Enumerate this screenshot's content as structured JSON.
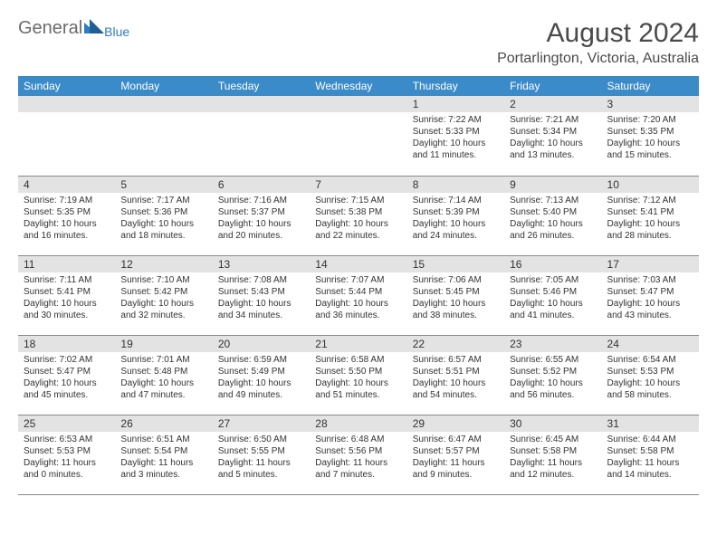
{
  "logo": {
    "text1": "General",
    "text2": "Blue"
  },
  "header": {
    "title": "August 2024",
    "location": "Portarlington, Victoria, Australia"
  },
  "weekdays": [
    "Sunday",
    "Monday",
    "Tuesday",
    "Wednesday",
    "Thursday",
    "Friday",
    "Saturday"
  ],
  "colors": {
    "header_bg": "#3b8bc9",
    "daynum_bg": "#e3e3e3",
    "text": "#333333",
    "title": "#4a4a4a"
  },
  "weeks": [
    [
      {
        "empty": true
      },
      {
        "empty": true
      },
      {
        "empty": true
      },
      {
        "empty": true
      },
      {
        "num": "1",
        "sunrise": "7:22 AM",
        "sunset": "5:33 PM",
        "daylight": "10 hours and 11 minutes."
      },
      {
        "num": "2",
        "sunrise": "7:21 AM",
        "sunset": "5:34 PM",
        "daylight": "10 hours and 13 minutes."
      },
      {
        "num": "3",
        "sunrise": "7:20 AM",
        "sunset": "5:35 PM",
        "daylight": "10 hours and 15 minutes."
      }
    ],
    [
      {
        "num": "4",
        "sunrise": "7:19 AM",
        "sunset": "5:35 PM",
        "daylight": "10 hours and 16 minutes."
      },
      {
        "num": "5",
        "sunrise": "7:17 AM",
        "sunset": "5:36 PM",
        "daylight": "10 hours and 18 minutes."
      },
      {
        "num": "6",
        "sunrise": "7:16 AM",
        "sunset": "5:37 PM",
        "daylight": "10 hours and 20 minutes."
      },
      {
        "num": "7",
        "sunrise": "7:15 AM",
        "sunset": "5:38 PM",
        "daylight": "10 hours and 22 minutes."
      },
      {
        "num": "8",
        "sunrise": "7:14 AM",
        "sunset": "5:39 PM",
        "daylight": "10 hours and 24 minutes."
      },
      {
        "num": "9",
        "sunrise": "7:13 AM",
        "sunset": "5:40 PM",
        "daylight": "10 hours and 26 minutes."
      },
      {
        "num": "10",
        "sunrise": "7:12 AM",
        "sunset": "5:41 PM",
        "daylight": "10 hours and 28 minutes."
      }
    ],
    [
      {
        "num": "11",
        "sunrise": "7:11 AM",
        "sunset": "5:41 PM",
        "daylight": "10 hours and 30 minutes."
      },
      {
        "num": "12",
        "sunrise": "7:10 AM",
        "sunset": "5:42 PM",
        "daylight": "10 hours and 32 minutes."
      },
      {
        "num": "13",
        "sunrise": "7:08 AM",
        "sunset": "5:43 PM",
        "daylight": "10 hours and 34 minutes."
      },
      {
        "num": "14",
        "sunrise": "7:07 AM",
        "sunset": "5:44 PM",
        "daylight": "10 hours and 36 minutes."
      },
      {
        "num": "15",
        "sunrise": "7:06 AM",
        "sunset": "5:45 PM",
        "daylight": "10 hours and 38 minutes."
      },
      {
        "num": "16",
        "sunrise": "7:05 AM",
        "sunset": "5:46 PM",
        "daylight": "10 hours and 41 minutes."
      },
      {
        "num": "17",
        "sunrise": "7:03 AM",
        "sunset": "5:47 PM",
        "daylight": "10 hours and 43 minutes."
      }
    ],
    [
      {
        "num": "18",
        "sunrise": "7:02 AM",
        "sunset": "5:47 PM",
        "daylight": "10 hours and 45 minutes."
      },
      {
        "num": "19",
        "sunrise": "7:01 AM",
        "sunset": "5:48 PM",
        "daylight": "10 hours and 47 minutes."
      },
      {
        "num": "20",
        "sunrise": "6:59 AM",
        "sunset": "5:49 PM",
        "daylight": "10 hours and 49 minutes."
      },
      {
        "num": "21",
        "sunrise": "6:58 AM",
        "sunset": "5:50 PM",
        "daylight": "10 hours and 51 minutes."
      },
      {
        "num": "22",
        "sunrise": "6:57 AM",
        "sunset": "5:51 PM",
        "daylight": "10 hours and 54 minutes."
      },
      {
        "num": "23",
        "sunrise": "6:55 AM",
        "sunset": "5:52 PM",
        "daylight": "10 hours and 56 minutes."
      },
      {
        "num": "24",
        "sunrise": "6:54 AM",
        "sunset": "5:53 PM",
        "daylight": "10 hours and 58 minutes."
      }
    ],
    [
      {
        "num": "25",
        "sunrise": "6:53 AM",
        "sunset": "5:53 PM",
        "daylight": "11 hours and 0 minutes."
      },
      {
        "num": "26",
        "sunrise": "6:51 AM",
        "sunset": "5:54 PM",
        "daylight": "11 hours and 3 minutes."
      },
      {
        "num": "27",
        "sunrise": "6:50 AM",
        "sunset": "5:55 PM",
        "daylight": "11 hours and 5 minutes."
      },
      {
        "num": "28",
        "sunrise": "6:48 AM",
        "sunset": "5:56 PM",
        "daylight": "11 hours and 7 minutes."
      },
      {
        "num": "29",
        "sunrise": "6:47 AM",
        "sunset": "5:57 PM",
        "daylight": "11 hours and 9 minutes."
      },
      {
        "num": "30",
        "sunrise": "6:45 AM",
        "sunset": "5:58 PM",
        "daylight": "11 hours and 12 minutes."
      },
      {
        "num": "31",
        "sunrise": "6:44 AM",
        "sunset": "5:58 PM",
        "daylight": "11 hours and 14 minutes."
      }
    ]
  ]
}
